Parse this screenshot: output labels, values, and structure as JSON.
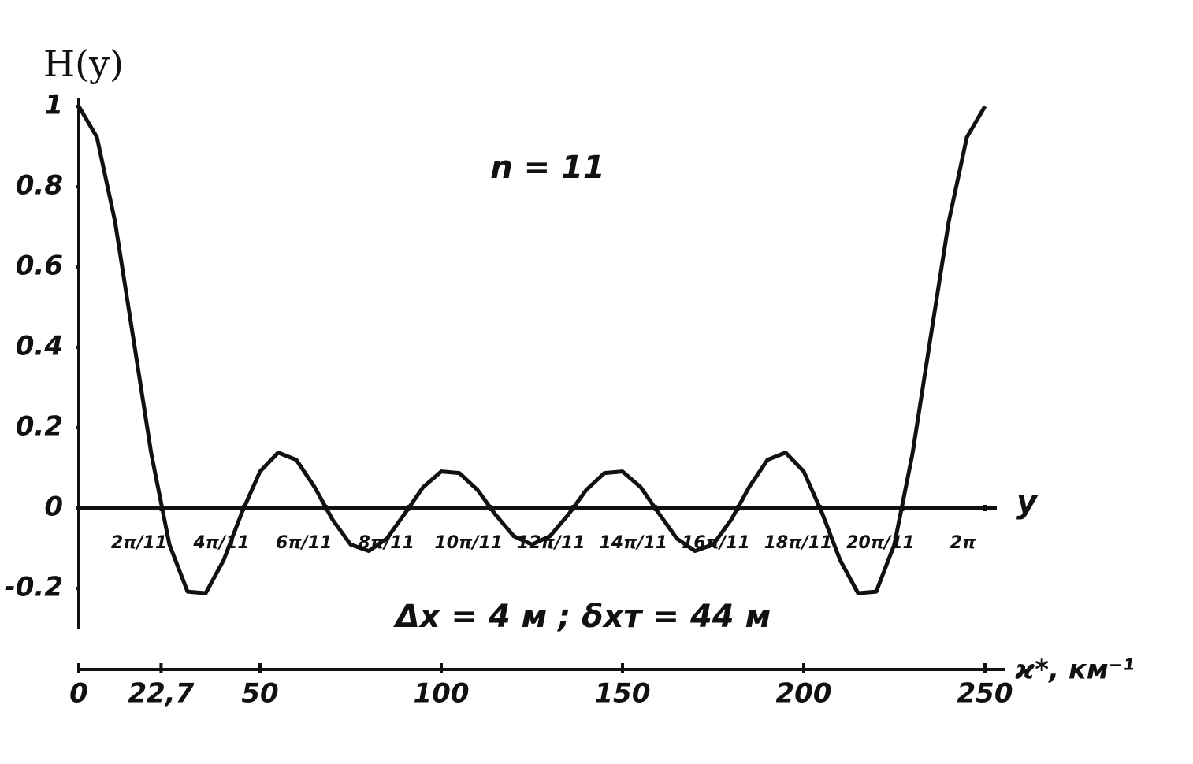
{
  "chart_data": {
    "type": "line",
    "title": "H(y)",
    "annotations": [
      "n = 11",
      "Δx = 4 м ;  δxт = 44 м"
    ],
    "x_label": "ϰ*, км⁻¹",
    "x2_label": "y",
    "x": [
      0,
      5,
      10,
      15,
      20,
      25,
      30,
      35,
      40,
      45,
      50,
      55,
      60,
      65,
      70,
      75,
      80,
      85,
      90,
      95,
      100,
      105,
      110,
      115,
      120,
      125,
      130,
      135,
      140,
      145,
      150,
      155,
      160,
      165,
      170,
      175,
      180,
      185,
      190,
      195,
      200,
      205,
      210,
      215,
      220,
      225,
      230,
      235,
      240,
      245,
      250
    ],
    "series": [
      {
        "name": "H(y)",
        "color": "#111111",
        "values": [
          1,
          0.923,
          0.713,
          0.425,
          0.135,
          -0.091,
          -0.208,
          -0.212,
          -0.129,
          -0.011,
          0.091,
          0.138,
          0.12,
          0.053,
          -0.029,
          -0.091,
          -0.107,
          -0.076,
          -0.013,
          0.052,
          0.091,
          0.087,
          0.045,
          -0.017,
          -0.07,
          -0.091,
          -0.07,
          -0.017,
          0.045,
          0.087,
          0.091,
          0.052,
          -0.013,
          -0.076,
          -0.107,
          -0.091,
          -0.029,
          0.053,
          0.12,
          0.138,
          0.091,
          -0.011,
          -0.129,
          -0.212,
          -0.208,
          -0.091,
          0.135,
          0.425,
          0.713,
          0.923,
          1
        ]
      }
    ],
    "xlim": [
      0,
      250
    ],
    "xticks": [
      0,
      {
        "value": 22.7,
        "label": "22,7"
      },
      50,
      100,
      150,
      200,
      250
    ],
    "x2lim": [
      0,
      6.283
    ],
    "x2ticks": [
      {
        "value": 0.571,
        "label": "2π/11"
      },
      {
        "value": 1.142,
        "label": "4π/11"
      },
      {
        "value": 1.714,
        "label": "6π/11"
      },
      {
        "value": 2.285,
        "label": "8π/11"
      },
      {
        "value": 2.856,
        "label": "10π/11"
      },
      {
        "value": 3.427,
        "label": "12π/11"
      },
      {
        "value": 3.998,
        "label": "14π/11"
      },
      {
        "value": 4.57,
        "label": "16π/11"
      },
      {
        "value": 5.141,
        "label": "18π/11"
      },
      {
        "value": 5.712,
        "label": "20π/11"
      },
      {
        "value": 6.283,
        "label": "2π"
      }
    ],
    "ylim": [
      -0.3,
      1.02
    ],
    "yticks": [
      1,
      0.8,
      0.6,
      0.4,
      0.2,
      0,
      -0.2
    ],
    "grid": false
  }
}
